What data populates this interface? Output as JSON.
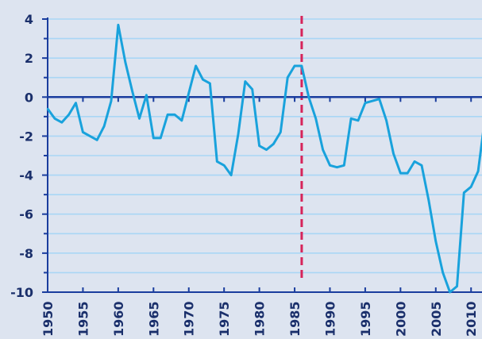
{
  "chart_data": {
    "type": "line",
    "title": "",
    "xlabel": "",
    "ylabel": "",
    "xlim": [
      1950,
      2012
    ],
    "ylim": [
      -10,
      4
    ],
    "x_ticks": [
      1950,
      1955,
      1960,
      1965,
      1970,
      1975,
      1980,
      1985,
      1990,
      1995,
      2000,
      2005,
      2010
    ],
    "y_ticks": [
      4,
      2,
      0,
      -2,
      -4,
      -6,
      -8,
      -10
    ],
    "grid": "horizontal",
    "reference_line": {
      "x": 1986,
      "style": "dashed",
      "color": "#d6245a"
    },
    "colors": {
      "background": "#dde4f0",
      "grid": "#a9d6f5",
      "axis": "#1a3d9e",
      "series": "#19a2dc",
      "tick_label": "#1a2f6b"
    },
    "series": [
      {
        "name": "",
        "x": [
          1950,
          1951,
          1952,
          1953,
          1954,
          1955,
          1956,
          1957,
          1958,
          1959,
          1960,
          1961,
          1962,
          1963,
          1964,
          1965,
          1966,
          1967,
          1968,
          1969,
          1970,
          1971,
          1972,
          1973,
          1974,
          1975,
          1976,
          1977,
          1978,
          1979,
          1980,
          1981,
          1982,
          1983,
          1984,
          1985,
          1986,
          1987,
          1988,
          1989,
          1990,
          1991,
          1992,
          1993,
          1994,
          1995,
          1996,
          1997,
          1998,
          1999,
          2000,
          2001,
          2002,
          2003,
          2004,
          2005,
          2006,
          2007,
          2008,
          2009,
          2010,
          2011,
          2012
        ],
        "values": [
          -0.6,
          -1.1,
          -1.3,
          -0.9,
          -0.3,
          -1.8,
          -2.0,
          -2.2,
          -1.5,
          -0.2,
          3.7,
          1.8,
          0.3,
          -1.1,
          0.1,
          -2.1,
          -2.1,
          -0.9,
          -0.9,
          -1.2,
          0.2,
          1.6,
          0.9,
          0.7,
          -3.3,
          -3.5,
          -4.0,
          -1.9,
          0.8,
          0.4,
          -2.5,
          -2.7,
          -2.4,
          -1.8,
          1.0,
          1.6,
          1.6,
          0.0,
          -1.1,
          -2.7,
          -3.5,
          -3.6,
          -3.5,
          -1.1,
          -1.2,
          -0.3,
          -0.2,
          -0.1,
          -1.2,
          -2.9,
          -3.9,
          -3.9,
          -3.3,
          -3.5,
          -5.3,
          -7.4,
          -9.0,
          -10.0,
          -9.7,
          -4.9,
          -4.6,
          -3.8,
          -1.0
        ]
      }
    ]
  }
}
